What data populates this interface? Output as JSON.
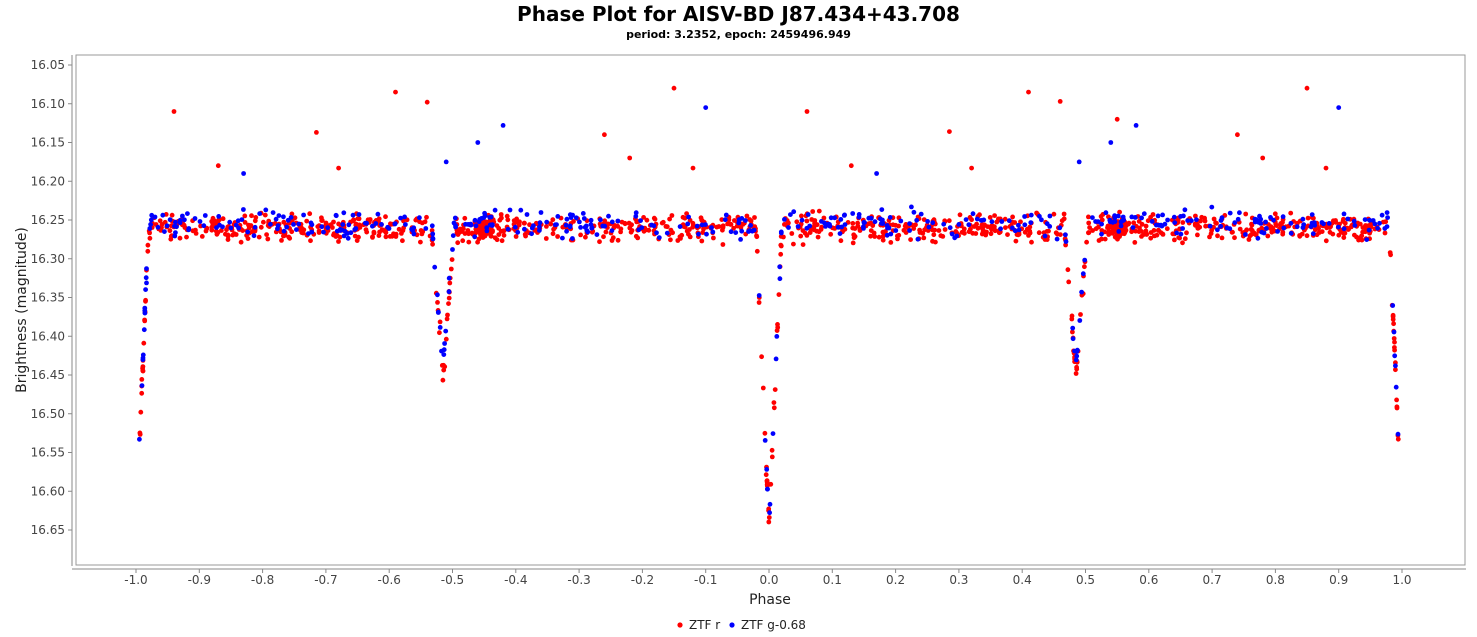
{
  "chart_data": {
    "type": "scatter",
    "title": "Phase Plot for AISV-BD J87.434+43.708",
    "subtitle": "period: 3.2352, epoch: 2459496.949",
    "xlabel": "Phase",
    "ylabel": "Brightness (magnitude)",
    "xlim": [
      -1.05,
      1.05
    ],
    "ylim": [
      16.69,
      16.04
    ],
    "y_inverted": true,
    "x_ticks": [
      "-1.0",
      "-0.9",
      "-0.8",
      "-0.7",
      "-0.6",
      "-0.5",
      "-0.4",
      "-0.3",
      "-0.2",
      "-0.1",
      "0.0",
      "0.1",
      "0.2",
      "0.3",
      "0.4",
      "0.5",
      "0.6",
      "0.7",
      "0.8",
      "0.9",
      "1.0"
    ],
    "y_ticks": [
      "16.05",
      "16.10",
      "16.15",
      "16.20",
      "16.25",
      "16.30",
      "16.35",
      "16.40",
      "16.45",
      "16.50",
      "16.55",
      "16.60",
      "16.65"
    ],
    "grid": false,
    "legend_position": "bottom-center",
    "series": [
      {
        "name": "ZTF r",
        "color": "#ff0000",
        "baseline": 16.26,
        "primary_eclipse_depth": 16.645,
        "secondary_eclipse_depth": 16.45,
        "outliers": [
          {
            "x": -0.94,
            "y": 16.11
          },
          {
            "x": -0.59,
            "y": 16.085
          },
          {
            "x": -0.54,
            "y": 16.098
          },
          {
            "x": -0.715,
            "y": 16.137
          },
          {
            "x": -0.68,
            "y": 16.183
          },
          {
            "x": -0.26,
            "y": 16.14
          },
          {
            "x": -0.15,
            "y": 16.08
          },
          {
            "x": -0.22,
            "y": 16.17
          },
          {
            "x": -0.12,
            "y": 16.183
          },
          {
            "x": -0.87,
            "y": 16.18
          },
          {
            "x": 0.06,
            "y": 16.11
          },
          {
            "x": 0.41,
            "y": 16.085
          },
          {
            "x": 0.46,
            "y": 16.097
          },
          {
            "x": 0.285,
            "y": 16.136
          },
          {
            "x": 0.32,
            "y": 16.183
          },
          {
            "x": 0.74,
            "y": 16.14
          },
          {
            "x": 0.85,
            "y": 16.08
          },
          {
            "x": 0.78,
            "y": 16.17
          },
          {
            "x": 0.88,
            "y": 16.183
          },
          {
            "x": 0.13,
            "y": 16.18
          },
          {
            "x": 0.55,
            "y": 16.12
          }
        ]
      },
      {
        "name": "ZTF g-0.68",
        "color": "#0000ff",
        "baseline": 16.255,
        "primary_eclipse_depth": 16.645,
        "secondary_eclipse_depth": 16.44,
        "outliers": [
          {
            "x": -0.42,
            "y": 16.128
          },
          {
            "x": -0.1,
            "y": 16.105
          },
          {
            "x": -0.46,
            "y": 16.15
          },
          {
            "x": -0.51,
            "y": 16.175
          },
          {
            "x": -0.83,
            "y": 16.19
          },
          {
            "x": 0.58,
            "y": 16.128
          },
          {
            "x": 0.9,
            "y": 16.105
          },
          {
            "x": 0.54,
            "y": 16.15
          },
          {
            "x": 0.49,
            "y": 16.175
          },
          {
            "x": 0.17,
            "y": 16.19
          }
        ]
      }
    ]
  }
}
